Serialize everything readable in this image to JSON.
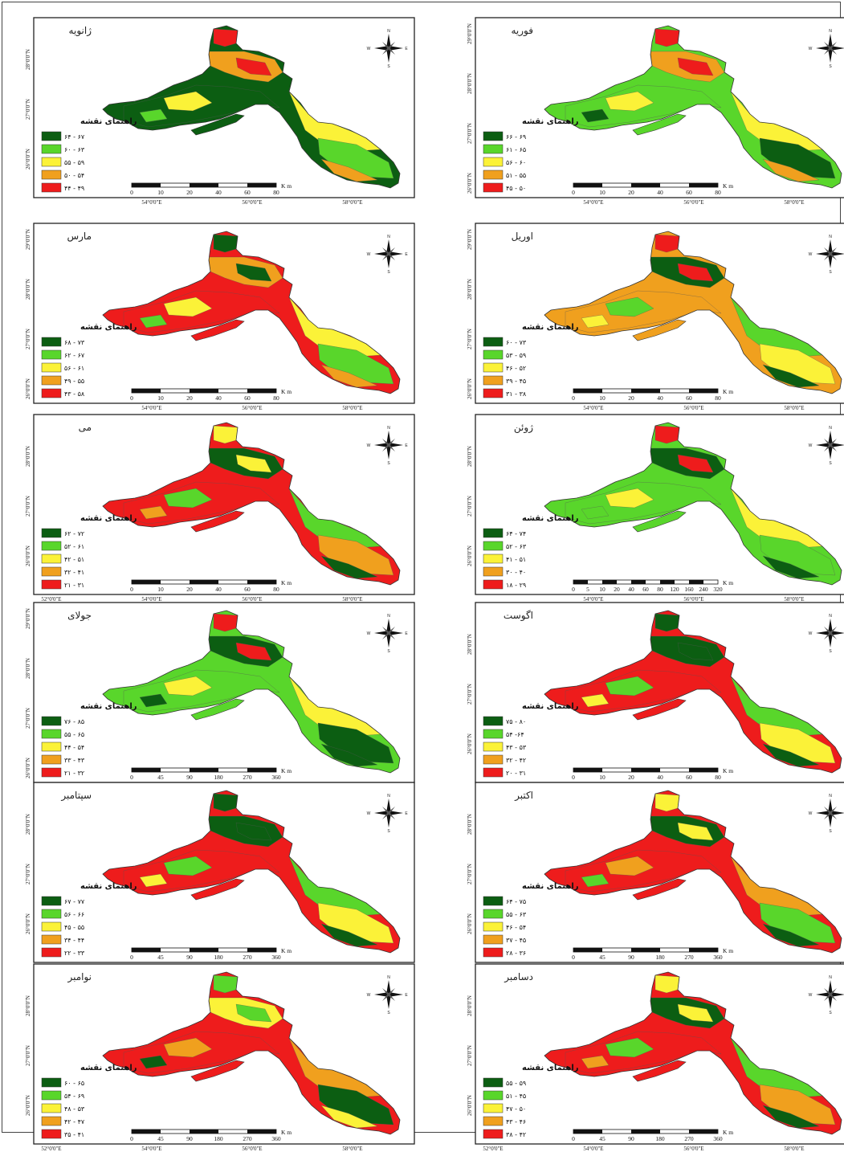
{
  "colors": {
    "class1": "#0c5e12",
    "class2": "#59d62b",
    "class3": "#fbf238",
    "class4": "#f0a01e",
    "class5": "#ee1c1c",
    "frame": "#222222"
  },
  "legend_title": "راهنمای نقشه",
  "scale_unit": "K m",
  "compass": {
    "n": "N",
    "s": "S",
    "e": "E",
    "w": "W"
  },
  "maps": [
    {
      "month": "ژانویه",
      "palette": [
        "orange",
        "green",
        "yellow",
        "lgreen",
        "red"
      ],
      "legend": [
        "۶۴ - ۶۷",
        "۶۰ - ۶۳",
        "۵۵ - ۵۹",
        "۵۰ - ۵۴",
        "۴۴ - ۴۹"
      ],
      "scale": [
        "0",
        "10",
        "20",
        "40",
        "60",
        "80"
      ],
      "lon": [
        "54°0'0\"E",
        "56°0'0\"E",
        "58°0'0\"E"
      ],
      "lat": [
        "28°0'0\"N",
        "27°0'0\"N",
        "26°0'0\"N"
      ]
    },
    {
      "month": "فوریه",
      "palette": [
        "orange",
        "lgreen",
        "yellow",
        "green",
        "red"
      ],
      "legend": [
        "۶۶ - ۶۹",
        "۶۱ - ۶۵",
        "۵۶ - ۶۰",
        "۵۱ - ۵۵",
        "۴۵ - ۵۰"
      ],
      "scale": [
        "0",
        "10",
        "20",
        "40",
        "60",
        "80"
      ],
      "lon": [
        "54°0'0\"E",
        "56°0'0\"E",
        "58°0'0\"E"
      ],
      "lat": [
        "29°0'0\"N",
        "28°0'0\"N",
        "27°0'0\"N",
        "26°0'0\"N"
      ]
    },
    {
      "month": "مارس",
      "palette": [
        "orange",
        "red",
        "yellow",
        "lgreen",
        "green"
      ],
      "legend": [
        "۶۸ - ۷۳",
        "۶۲ - ۶۷",
        "۵۶ - ۶۱",
        "۴۹ - ۵۵",
        "۴۳ - ۵۸"
      ],
      "scale": [
        "0",
        "10",
        "20",
        "40",
        "60",
        "80"
      ],
      "lon": [
        "54°0'0\"E",
        "56°0'0\"E",
        "58°0'0\"E"
      ],
      "lat": [
        "29°0'0\"N",
        "28°0'0\"N",
        "27°0'0\"N",
        "26°0'0\"N"
      ]
    },
    {
      "month": "اوریل",
      "palette": [
        "green",
        "orange",
        "lgreen",
        "yellow",
        "red"
      ],
      "legend": [
        "۶۰ - ۷۳",
        "۵۳ - ۵۹",
        "۴۶ - ۵۲",
        "۳۹ - ۴۵",
        "۳۱ - ۳۸"
      ],
      "scale": [
        "0",
        "10",
        "20",
        "40",
        "60",
        "80"
      ],
      "lon": [
        "54°0'0\"E",
        "56°0'0\"E",
        "58°0'0\"E"
      ],
      "lat": [
        "29°0'0\"N",
        "28°0'0\"N",
        "27°0'0\"N",
        "26°0'0\"N"
      ]
    },
    {
      "month": "می",
      "palette": [
        "green",
        "red",
        "lgreen",
        "orange",
        "yellow"
      ],
      "legend": [
        "۶۲ - ۷۲",
        "۵۲ - ۶۱",
        "۴۲ - ۵۱",
        "۳۲ - ۴۱",
        "۲۱ - ۳۱"
      ],
      "scale": [
        "0",
        "10",
        "20",
        "40",
        "60",
        "80"
      ],
      "lon": [
        "52°0'0\"E",
        "54°0'0\"E",
        "56°0'0\"E",
        "58°0'0\"E"
      ],
      "lat": [
        "28°0'0\"N",
        "27°0'0\"N",
        "26°0'0\"N"
      ]
    },
    {
      "month": "ژوئن",
      "palette": [
        "green",
        "lgreen",
        "yellow",
        "lgreen",
        "red"
      ],
      "legend": [
        "۶۴ - ۷۴",
        "۵۲ - ۶۳",
        "۴۱ - ۵۱",
        "۳۰ - ۴۰",
        "۱۸ - ۲۹"
      ],
      "scale": [
        "0",
        "5",
        "10",
        "20",
        "40",
        "60",
        "80",
        "120",
        "160",
        "240",
        "320"
      ],
      "lon": [
        "54°0'0\"E",
        "56°0'0\"E",
        "58°0'0\"E"
      ],
      "lat": [
        "28°0'0\"N",
        "27°0'0\"N",
        "26°0'0\"N"
      ]
    },
    {
      "month": "جولای",
      "palette": [
        "green",
        "lgreen",
        "yellow",
        "green",
        "red"
      ],
      "legend": [
        "۷۶ - ۸۵",
        "۵۵ - ۶۵",
        "۴۴ - ۵۴",
        "۳۳ - ۴۳",
        "۲۱ - ۳۲"
      ],
      "scale": [
        "0",
        "45",
        "90",
        "180",
        "270",
        "360"
      ],
      "lon": [
        "52°0'0\"E",
        "54°0'0\"E",
        "56°0'0\"E",
        "58°0'0\"E"
      ],
      "lat": [
        "29°0'0\"N",
        "28°0'0\"N",
        "27°0'0\"N",
        "26°0'0\"N"
      ]
    },
    {
      "month": "اگوست",
      "palette": [
        "green",
        "red",
        "lgreen",
        "yellow",
        "green"
      ],
      "legend": [
        "۷۵ - ۸۰",
        "۵۴ -۶۴",
        "۴۳ - ۵۳",
        "۳۲ - ۴۲",
        "۲۰ - ۳۱"
      ],
      "scale": [
        "0",
        "10",
        "20",
        "40",
        "60",
        "80"
      ],
      "lon": [
        "54°0'0\"E",
        "56°0'0\"E",
        "58°0'0\"E"
      ],
      "lat": [
        "28°0'0\"N",
        "27°0'0\"N",
        "26°0'0\"N"
      ]
    },
    {
      "month": "سپتامبر",
      "palette": [
        "green",
        "red",
        "lgreen",
        "yellow",
        "green"
      ],
      "legend": [
        "۶۷ - ۷۷",
        "۵۶ - ۶۶",
        "۴۵ - ۵۵",
        "۳۴ - ۴۴",
        "۲۲ - ۳۳"
      ],
      "scale": [
        "0",
        "45",
        "90",
        "180",
        "270",
        "360"
      ],
      "lon": [
        "52°0'0\"E",
        "54°0'0\"E",
        "56°0'0\"E",
        "58°0'0\"E"
      ],
      "lat": [
        "28°0'0\"N",
        "27°0'0\"N",
        "26°0'0\"N"
      ]
    },
    {
      "month": "اکتبر",
      "palette": [
        "green",
        "red",
        "orange",
        "lgreen",
        "yellow"
      ],
      "legend": [
        "۶۴ - ۷۵",
        "۵۵ - ۶۳",
        "۴۶ - ۵۴",
        "۳۷ - ۴۵",
        "۲۸ - ۳۶"
      ],
      "scale": [
        "0",
        "45",
        "90",
        "180",
        "270",
        "360"
      ],
      "lon": [
        "54°0'0\"E",
        "56°0'0\"E",
        "58°0'0\"E"
      ],
      "lat": [
        "28°0'0\"N",
        "27°0'0\"N",
        "26°0'0\"N"
      ]
    },
    {
      "month": "نوامبر",
      "palette": [
        "yellow",
        "red",
        "orange",
        "green",
        "lgreen"
      ],
      "legend": [
        "۶۰ - ۶۵",
        "۵۴ - ۶۹",
        "۴۸ - ۵۳",
        "۴۲ - ۴۷",
        "۳۵ - ۴۱"
      ],
      "scale": [
        "0",
        "45",
        "90",
        "180",
        "270",
        "360"
      ],
      "lon": [
        "52°0'0\"E",
        "54°0'0\"E",
        "56°0'0\"E",
        "58°0'0\"E"
      ],
      "lat": [
        "28°0'0\"N",
        "27°0'0\"N",
        "26°0'0\"N"
      ]
    },
    {
      "month": "دسامبر",
      "palette": [
        "green",
        "red",
        "lgreen",
        "orange",
        "yellow"
      ],
      "legend": [
        "۵۵ - ۵۹",
        "۵۱ - ۴۵",
        "۴۷ - ۵۰",
        "۴۳ - ۴۶",
        "۳۸ - ۴۲"
      ],
      "scale": [
        "0",
        "45",
        "90",
        "180",
        "270",
        "360"
      ],
      "lon": [
        "52°0'0\"E",
        "54°0'0\"E",
        "56°0'0\"E",
        "58°0'0\"E"
      ],
      "lat": [
        "28°0'0\"N",
        "27°0'0\"N",
        "26°0'0\"N"
      ]
    }
  ]
}
